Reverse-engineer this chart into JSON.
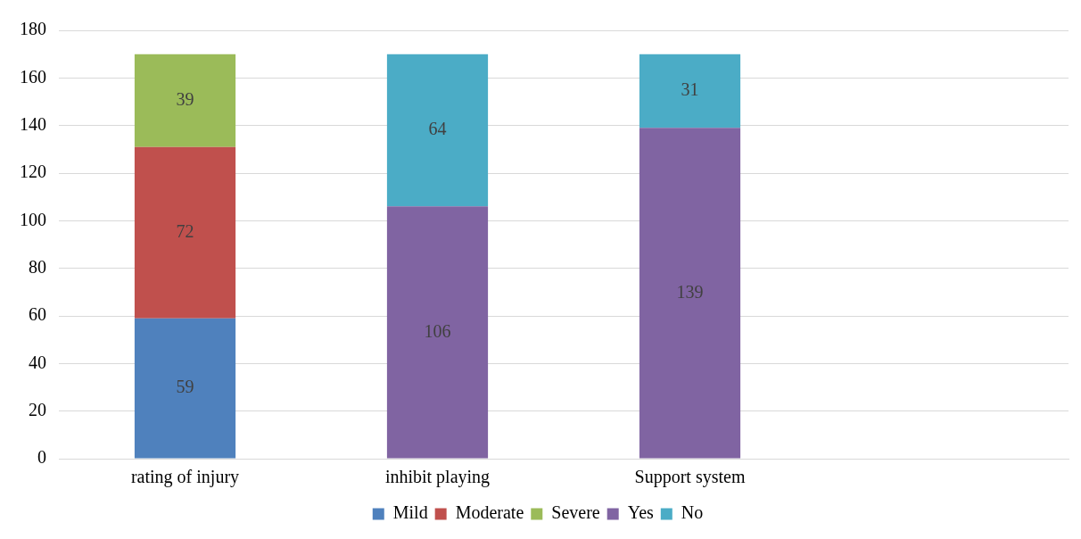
{
  "chart_data": {
    "type": "bar",
    "stacked": true,
    "categories": [
      "rating of injury",
      "inhibit playing",
      "Support system",
      null
    ],
    "series": [
      {
        "name": "Mild",
        "color": "#4f81bd",
        "values": [
          59,
          null,
          null,
          null
        ]
      },
      {
        "name": "Moderate",
        "color": "#c0504d",
        "values": [
          72,
          null,
          null,
          null
        ]
      },
      {
        "name": "Severe",
        "color": "#9bbb59",
        "values": [
          39,
          null,
          null,
          null
        ]
      },
      {
        "name": "Yes",
        "color": "#8064a2",
        "values": [
          null,
          106,
          139,
          null
        ]
      },
      {
        "name": "No",
        "color": "#4bacc6",
        "values": [
          null,
          64,
          31,
          null
        ]
      }
    ],
    "ylim": [
      0,
      180
    ],
    "yticks": [
      0,
      20,
      40,
      60,
      80,
      100,
      120,
      140,
      160,
      180
    ],
    "grid": "y",
    "legend": "bottom",
    "data_labels": true
  }
}
